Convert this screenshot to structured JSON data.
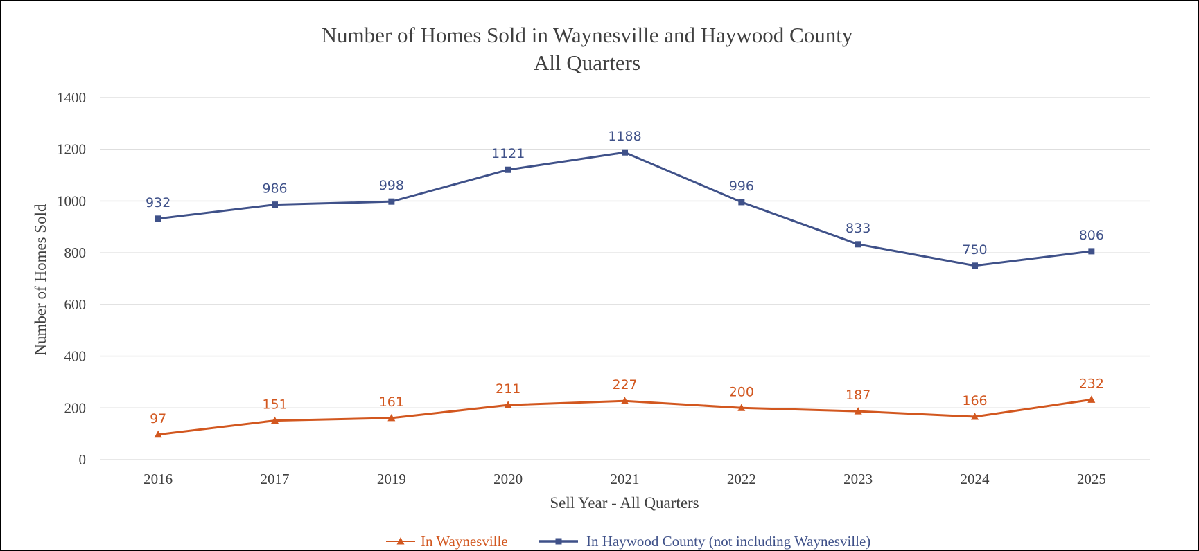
{
  "chart_data": {
    "type": "line",
    "title": "Number of Homes Sold in Waynesville and Haywood County",
    "subtitle": "All Quarters",
    "xlabel": "Sell Year - All Quarters",
    "ylabel": "Number of Homes Sold",
    "ylim": [
      0,
      1400
    ],
    "yticks": [
      "0",
      "200",
      "400",
      "600",
      "800",
      "1000",
      "1200",
      "1400"
    ],
    "categories": [
      "2016",
      "2017",
      "2019",
      "2020",
      "2021",
      "2022",
      "2023",
      "2024",
      "2025"
    ],
    "grid": true,
    "legend_position": "bottom",
    "series": [
      {
        "name": "In Waynesville",
        "marker": "triangle",
        "color": "#d2571f",
        "values": [
          97,
          151,
          161,
          211,
          227,
          200,
          187,
          166,
          232
        ]
      },
      {
        "name": "In Haywood County (not including Waynesville)",
        "marker": "square",
        "color": "#3f5189",
        "values": [
          932,
          986,
          998,
          1121,
          1188,
          996,
          833,
          750,
          806
        ]
      }
    ]
  }
}
